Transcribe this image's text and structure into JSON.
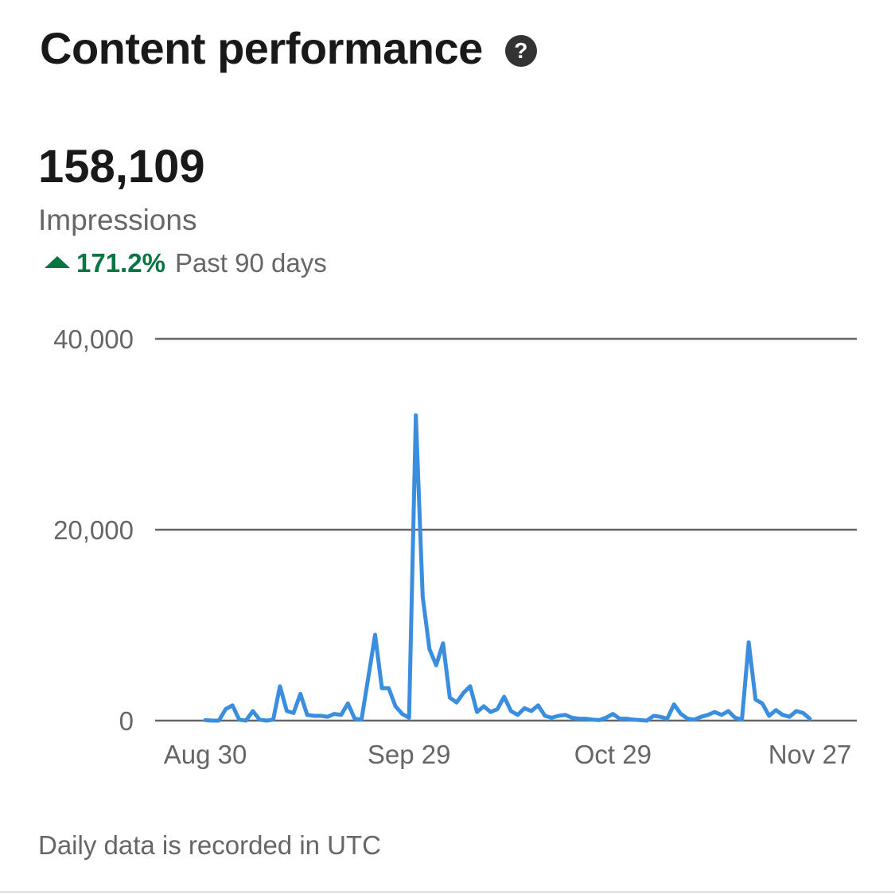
{
  "header": {
    "title": "Content performance",
    "help_icon": "question-mark-circle-icon",
    "help_glyph": "?"
  },
  "metric": {
    "value": "158,109",
    "label": "Impressions",
    "trend_icon": "triangle-up-icon",
    "change": "171.2%",
    "period": "Past 90 days",
    "accent_color": "#057642"
  },
  "chart_data": {
    "type": "line",
    "title": "",
    "xlabel": "",
    "ylabel": "",
    "ylim": [
      0,
      40000
    ],
    "y_ticks": [
      0,
      20000,
      40000
    ],
    "y_tick_labels": [
      "0",
      "20,000",
      "40,000"
    ],
    "x_ticks": [
      "Aug 30",
      "Sep 29",
      "Oct 29",
      "Nov 27"
    ],
    "grid": true,
    "line_color": "#3b8ede",
    "series": [
      {
        "name": "",
        "x": [
          "Aug 30",
          "Aug 31",
          "Sep 1",
          "Sep 2",
          "Sep 3",
          "Sep 4",
          "Sep 5",
          "Sep 6",
          "Sep 7",
          "Sep 8",
          "Sep 9",
          "Sep 10",
          "Sep 11",
          "Sep 12",
          "Sep 13",
          "Sep 14",
          "Sep 15",
          "Sep 16",
          "Sep 17",
          "Sep 18",
          "Sep 19",
          "Sep 20",
          "Sep 21",
          "Sep 22",
          "Sep 23",
          "Sep 24",
          "Sep 25",
          "Sep 26",
          "Sep 27",
          "Sep 28",
          "Sep 29",
          "Sep 30",
          "Oct 1",
          "Oct 2",
          "Oct 3",
          "Oct 4",
          "Oct 5",
          "Oct 6",
          "Oct 7",
          "Oct 8",
          "Oct 9",
          "Oct 10",
          "Oct 11",
          "Oct 12",
          "Oct 13",
          "Oct 14",
          "Oct 15",
          "Oct 16",
          "Oct 17",
          "Oct 18",
          "Oct 19",
          "Oct 20",
          "Oct 21",
          "Oct 22",
          "Oct 23",
          "Oct 24",
          "Oct 25",
          "Oct 26",
          "Oct 27",
          "Oct 28",
          "Oct 29",
          "Oct 30",
          "Oct 31",
          "Nov 1",
          "Nov 2",
          "Nov 3",
          "Nov 4",
          "Nov 5",
          "Nov 6",
          "Nov 7",
          "Nov 8",
          "Nov 9",
          "Nov 10",
          "Nov 11",
          "Nov 12",
          "Nov 13",
          "Nov 14",
          "Nov 15",
          "Nov 16",
          "Nov 17",
          "Nov 18",
          "Nov 19",
          "Nov 20",
          "Nov 21",
          "Nov 22",
          "Nov 23",
          "Nov 24",
          "Nov 25",
          "Nov 26",
          "Nov 27"
        ],
        "values": [
          50,
          0,
          0,
          1200,
          1600,
          100,
          0,
          1000,
          100,
          0,
          100,
          3600,
          1000,
          800,
          2800,
          600,
          500,
          500,
          400,
          700,
          600,
          1800,
          200,
          100,
          4500,
          9000,
          3400,
          3400,
          1500,
          700,
          300,
          32000,
          13000,
          7500,
          5800,
          8100,
          2400,
          1900,
          2900,
          3600,
          900,
          1500,
          900,
          1200,
          2500,
          1000,
          600,
          1300,
          1000,
          1600,
          500,
          300,
          500,
          600,
          300,
          200,
          200,
          100,
          50,
          300,
          700,
          200,
          200,
          100,
          50,
          0,
          500,
          400,
          200,
          1700,
          700,
          200,
          100,
          400,
          600,
          900,
          600,
          1000,
          300,
          100,
          8200,
          2200,
          1800,
          500,
          1100,
          600,
          400,
          1000,
          800,
          200
        ]
      }
    ]
  },
  "footer": {
    "note": "Daily data is recorded in UTC"
  }
}
